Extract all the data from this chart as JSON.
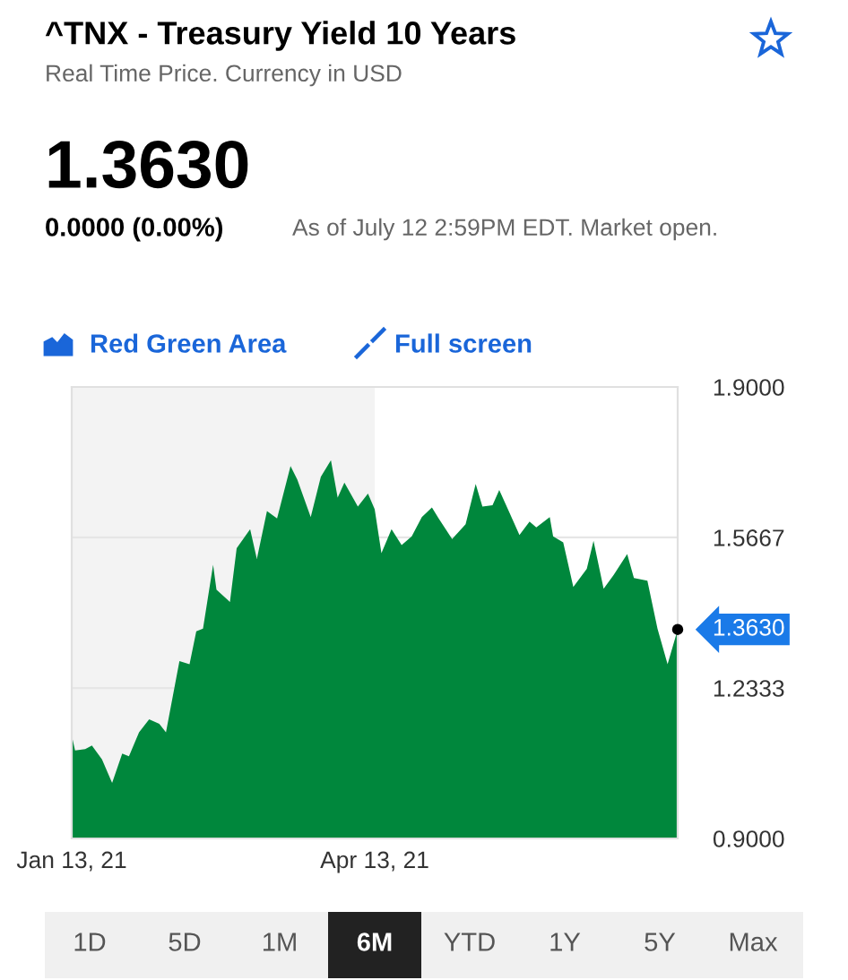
{
  "chart_data": {
    "type": "area",
    "title": "^TNX - Treasury Yield 10 Years",
    "subtitle": "Real Time Price. Currency in USD",
    "annotations": [
      "1.3630",
      "0.0000 (0.00%)",
      "As of July 12 2:59PM EDT. Market open.",
      "Red Green Area",
      "Full screen",
      "1D",
      "5D",
      "1M",
      "6M",
      "YTD",
      "1Y",
      "5Y",
      "Max",
      {
        "text": "1.3630",
        "x": "2021-07-12",
        "y": 1.363
      }
    ],
    "x": [
      "2021-01-13",
      "2021-01-14",
      "2021-01-17",
      "2021-01-19",
      "2021-01-22",
      "2021-01-25",
      "2021-01-28",
      "2021-01-30",
      "2021-02-02",
      "2021-02-05",
      "2021-02-08",
      "2021-02-10",
      "2021-02-14",
      "2021-02-17",
      "2021-02-19",
      "2021-02-21",
      "2021-02-24",
      "2021-02-25",
      "2021-03-01",
      "2021-03-03",
      "2021-03-07",
      "2021-03-09",
      "2021-03-12",
      "2021-03-15",
      "2021-03-19",
      "2021-03-21",
      "2021-03-25",
      "2021-03-28",
      "2021-03-31",
      "2021-04-02",
      "2021-04-04",
      "2021-04-08",
      "2021-04-11",
      "2021-04-13",
      "2021-04-15",
      "2021-04-18",
      "2021-04-21",
      "2021-04-24",
      "2021-04-27",
      "2021-04-30",
      "2021-05-02",
      "2021-05-06",
      "2021-05-10",
      "2021-05-13",
      "2021-05-15",
      "2021-05-18",
      "2021-05-20",
      "2021-05-23",
      "2021-05-26",
      "2021-05-29",
      "2021-05-31",
      "2021-06-04",
      "2021-06-05",
      "2021-06-08",
      "2021-06-11",
      "2021-06-15",
      "2021-06-17",
      "2021-06-20",
      "2021-06-23",
      "2021-06-27",
      "2021-06-29",
      "2021-07-03",
      "2021-07-06",
      "2021-07-09",
      "2021-07-12"
    ],
    "series": [
      {
        "color": "#00873c",
        "values": [
          1.128,
          1.095,
          1.098,
          1.106,
          1.075,
          1.023,
          1.088,
          1.082,
          1.135,
          1.164,
          1.154,
          1.135,
          1.293,
          1.286,
          1.359,
          1.365,
          1.506,
          1.451,
          1.424,
          1.543,
          1.585,
          1.519,
          1.625,
          1.609,
          1.725,
          1.695,
          1.612,
          1.701,
          1.738,
          1.655,
          1.688,
          1.635,
          1.664,
          1.629,
          1.532,
          1.585,
          1.55,
          1.569,
          1.612,
          1.633,
          1.609,
          1.563,
          1.596,
          1.685,
          1.635,
          1.638,
          1.672,
          1.622,
          1.572,
          1.602,
          1.589,
          1.612,
          1.569,
          1.556,
          1.457,
          1.497,
          1.559,
          1.453,
          1.484,
          1.53,
          1.477,
          1.471,
          1.365,
          1.286,
          1.363
        ]
      }
    ],
    "xlim": [
      "2021-01-13",
      "2021-07-12"
    ],
    "xticks": [
      {
        "value": "2021-01-13",
        "label": "Jan 13, 21"
      },
      {
        "value": "2021-04-13",
        "label": "Apr 13, 21"
      }
    ],
    "ylim": [
      0.9,
      1.9
    ],
    "yticks": [
      {
        "value": 0.9,
        "label": "0.9000"
      },
      {
        "value": 1.2333,
        "label": "1.2333"
      },
      {
        "value": 1.5667,
        "label": "1.5667"
      },
      {
        "value": 1.9,
        "label": "1.9000"
      }
    ],
    "bands": [
      {
        "axis": "x",
        "from": "2021-01-13",
        "to": "2021-04-13",
        "color": "#f3f3f3"
      }
    ],
    "grid": "y",
    "legend": false
  }
}
